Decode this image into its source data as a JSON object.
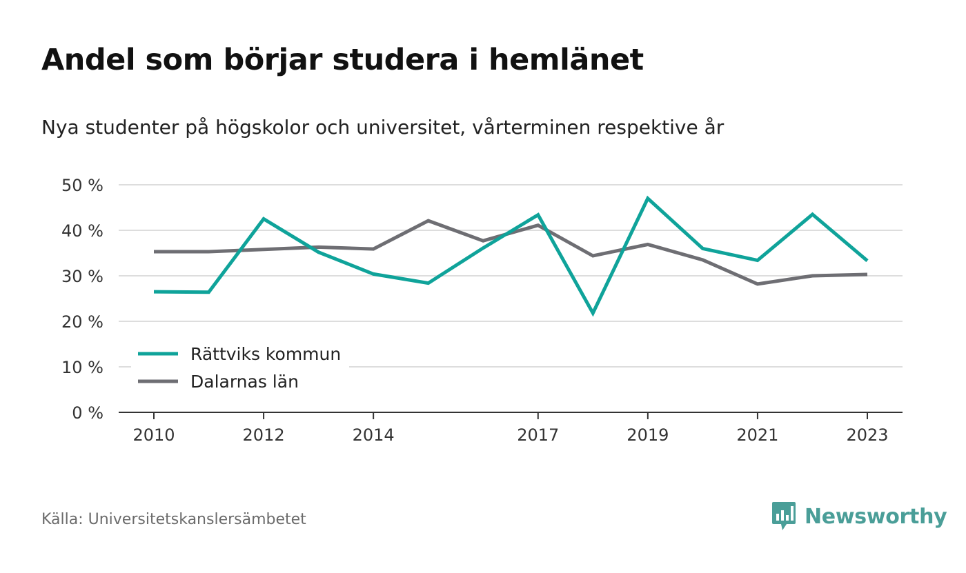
{
  "header": {
    "title": "Andel som börjar studera i hemlänet",
    "subtitle": "Nya studenter på högskolor och universitet, vårterminen respektive år"
  },
  "footer": {
    "source": "Källa: Universitetskanslersämbetet",
    "brand": "Newsworthy",
    "brand_icon": "bar-chart-speech-bubble-icon"
  },
  "colors": {
    "rattvik": "#0fa39a",
    "dalarna": "#6e6e73",
    "grid": "#dddddd",
    "axis": "#333333",
    "brand": "#4a9e98"
  },
  "chart_data": {
    "type": "line",
    "x": [
      2010,
      2011,
      2012,
      2013,
      2014,
      2015,
      2016,
      2017,
      2018,
      2019,
      2020,
      2021,
      2022,
      2023
    ],
    "x_tick_labels": [
      "2010",
      "2012",
      "2014",
      "2017",
      "2019",
      "2021",
      "2023"
    ],
    "series": [
      {
        "name": "Rättviks kommun",
        "values": [
          26.5,
          26.4,
          42.5,
          35.2,
          30.4,
          28.4,
          36.1,
          43.4,
          21.8,
          47.0,
          36.0,
          33.4,
          43.5,
          33.3
        ]
      },
      {
        "name": "Dalarnas län",
        "values": [
          35.3,
          35.3,
          35.8,
          36.3,
          35.9,
          42.1,
          37.7,
          41.1,
          34.4,
          36.9,
          33.5,
          28.2,
          30.0,
          30.3
        ]
      }
    ],
    "ylim": [
      0,
      50
    ],
    "y_ticks": [
      0,
      10,
      20,
      30,
      40,
      50
    ],
    "y_tick_labels": [
      "0 %",
      "10 %",
      "20 %",
      "30 %",
      "40 %",
      "50 %"
    ],
    "grid": true,
    "legend_position": "bottom-left"
  }
}
